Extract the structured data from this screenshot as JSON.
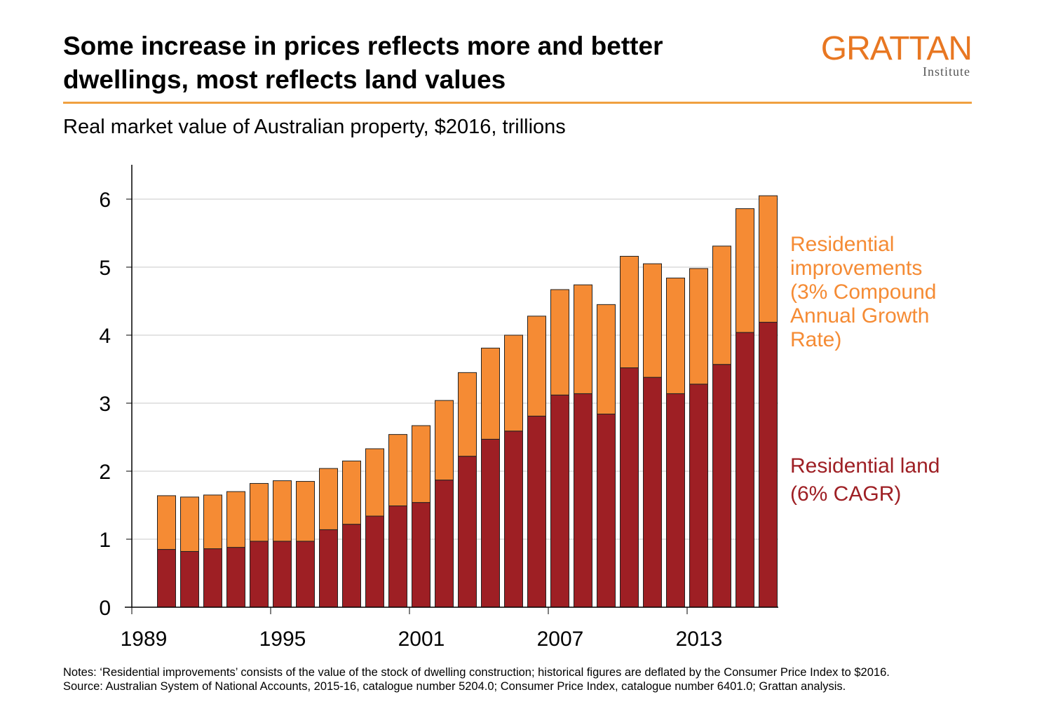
{
  "header": {
    "title": "Some increase in prices reflects more and better dwellings, most reflects land values",
    "subtitle": "Real market value of Australian property, $2016, trillions",
    "logo": {
      "main": "GRATTAN",
      "sub": "Institute"
    }
  },
  "chart_data": {
    "type": "bar",
    "stacked": true,
    "title": "Real market value of Australian property, $2016, trillions",
    "xlabel": "",
    "ylabel": "",
    "ylim": [
      0,
      6.5
    ],
    "xlim": [
      1989,
      2017
    ],
    "y_ticks": [
      "0",
      "1",
      "2",
      "3",
      "4",
      "5",
      "6"
    ],
    "x_ticks": [
      "1989",
      "1995",
      "2001",
      "2007",
      "2013"
    ],
    "grid": true,
    "categories": [
      1990,
      1991,
      1992,
      1993,
      1994,
      1995,
      1996,
      1997,
      1998,
      1999,
      2000,
      2001,
      2002,
      2003,
      2004,
      2005,
      2006,
      2007,
      2008,
      2009,
      2010,
      2011,
      2012,
      2013,
      2014,
      2015,
      2016
    ],
    "series": [
      {
        "name": "Residential land (6% CAGR)",
        "color": "#9e1f24",
        "values": [
          0.85,
          0.82,
          0.86,
          0.88,
          0.97,
          0.97,
          0.97,
          1.14,
          1.22,
          1.34,
          1.49,
          1.54,
          1.87,
          2.22,
          2.47,
          2.59,
          2.81,
          3.12,
          3.14,
          2.84,
          3.52,
          3.38,
          3.14,
          3.28,
          3.57,
          4.04,
          4.19
        ]
      },
      {
        "name": "Residential improvements (3% Compound Annual Growth Rate)",
        "color": "#f58b34",
        "values": [
          0.79,
          0.8,
          0.79,
          0.82,
          0.85,
          0.89,
          0.88,
          0.9,
          0.93,
          0.99,
          1.05,
          1.13,
          1.17,
          1.23,
          1.34,
          1.41,
          1.47,
          1.55,
          1.6,
          1.61,
          1.64,
          1.67,
          1.7,
          1.7,
          1.74,
          1.82,
          1.86
        ]
      }
    ],
    "legend": {
      "placement": "right",
      "improvements": [
        "Residential",
        "improvements",
        "(3% Compound",
        "Annual Growth",
        "Rate)"
      ],
      "land": [
        "Residential land",
        "(6% CAGR)"
      ]
    }
  },
  "footer": {
    "notes": "Notes: ‘Residential improvements’ consists of the value of the stock of dwelling construction; historical figures are deflated by the Consumer Price Index to $2016.",
    "source": "Source: Australian System of National Accounts, 2015-16, catalogue number 5204.0; Consumer Price Index, catalogue number 6401.0; Grattan analysis."
  }
}
